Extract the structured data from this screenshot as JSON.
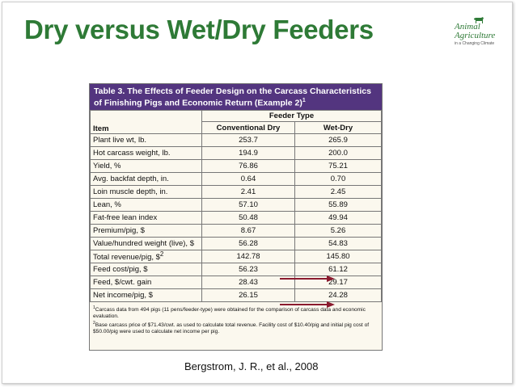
{
  "slide": {
    "title": "Dry versus Wet/Dry Feeders",
    "source": "Bergstrom, J. R., et al., 2008"
  },
  "logo": {
    "line1": "Animal",
    "line2": "Agriculture",
    "line3": "in a Changing Climate",
    "color": "#2e7a36",
    "icon": "cow-icon"
  },
  "table": {
    "caption": "Table 3. The Effects of Feeder Design on the Carcass Characteristics of Finishing Pigs and Economic Return (Example 2)",
    "caption_sup": "1",
    "group_header": "Feeder Type",
    "item_header": "Item",
    "columns": [
      "Conventional Dry",
      "Wet-Dry"
    ],
    "rows": [
      {
        "item": "Plant live wt, lb.",
        "sup": "",
        "dry": "253.7",
        "wet": "265.9"
      },
      {
        "item": "Hot carcass weight, lb.",
        "sup": "",
        "dry": "194.9",
        "wet": "200.0"
      },
      {
        "item": "Yield, %",
        "sup": "",
        "dry": "76.86",
        "wet": "75.21"
      },
      {
        "item": "Avg. backfat depth, in.",
        "sup": "",
        "dry": "0.64",
        "wet": "0.70"
      },
      {
        "item": "Loin muscle depth, in.",
        "sup": "",
        "dry": "2.41",
        "wet": "2.45"
      },
      {
        "item": "Lean, %",
        "sup": "",
        "dry": "57.10",
        "wet": "55.89"
      },
      {
        "item": "Fat-free lean index",
        "sup": "",
        "dry": "50.48",
        "wet": "49.94"
      },
      {
        "item": "Premium/pig, $",
        "sup": "",
        "dry": "8.67",
        "wet": "5.26"
      },
      {
        "item": "Value/hundred weight (live), $",
        "sup": "",
        "dry": "56.28",
        "wet": "54.83"
      },
      {
        "item": "Total revenue/pig, $",
        "sup": "2",
        "dry": "142.78",
        "wet": "145.80"
      },
      {
        "item": "Feed cost/pig, $",
        "sup": "",
        "dry": "56.23",
        "wet": "61.12"
      },
      {
        "item": "Feed, $/cwt. gain",
        "sup": "",
        "dry": "28.43",
        "wet": "29.17"
      },
      {
        "item": "Net income/pig, $",
        "sup": "",
        "dry": "26.15",
        "wet": "24.28"
      }
    ],
    "footnotes": [
      {
        "num": "1",
        "text": "Carcass data from 494 pigs (11 pens/feeder-type) were obtained for the comparison of carcass data and economic evaluation."
      },
      {
        "num": "2",
        "text": "Base carcass price of $71.43/cwt. as used to calculate total revenue. Facility cost of $10.40/pig and initial pig cost of $50.00/pig were used to calculate net income per pig."
      }
    ],
    "caption_color": "#53357f",
    "background_color": "#fbf8ee"
  },
  "annotations": {
    "arrow_color": "#8b1a2e",
    "arrows": [
      {
        "row": "Feed cost/pig, $"
      },
      {
        "row": "Net income/pig, $"
      }
    ]
  }
}
